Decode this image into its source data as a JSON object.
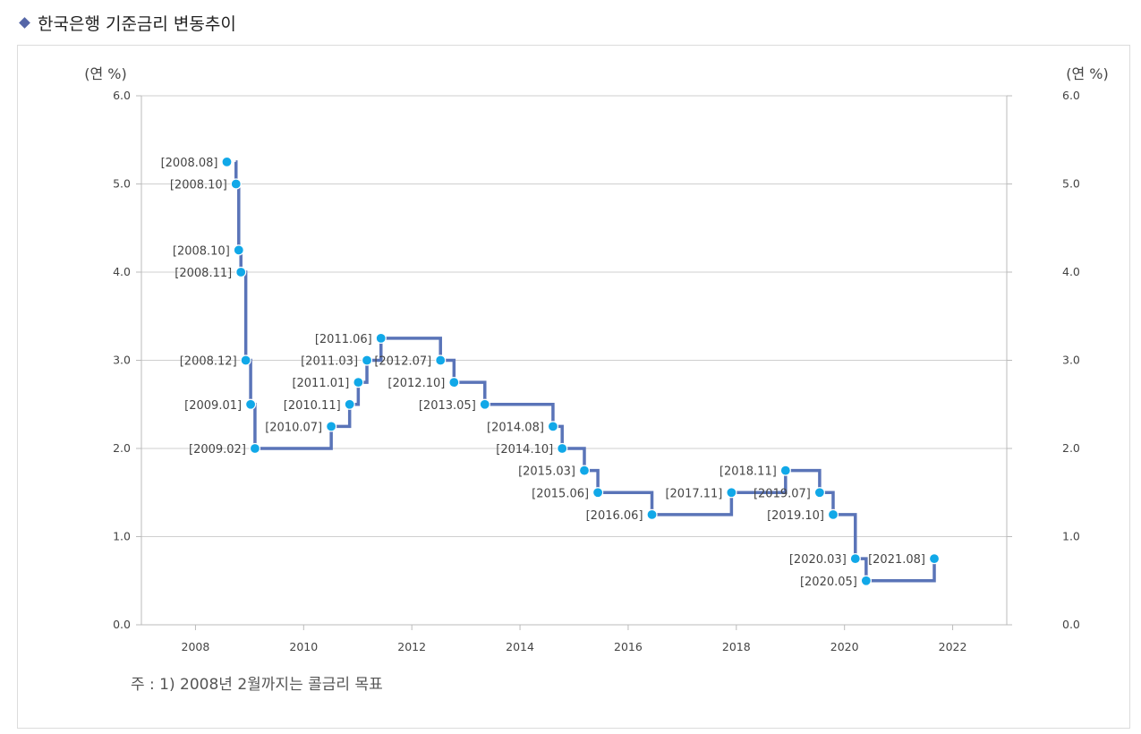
{
  "heading": {
    "title": "한국은행 기준금리 변동추이",
    "marker_color": "#5566a8"
  },
  "note": "주 : 1) 2008년 2월까지는 콜금리 목표",
  "chart_data": {
    "type": "line",
    "title": "",
    "ylabel_left": "(연 %)",
    "ylabel_right": "(연 %)",
    "ylim": [
      0,
      6
    ],
    "yticks": [
      "0.0",
      "1.0",
      "2.0",
      "3.0",
      "4.0",
      "5.0",
      "6.0"
    ],
    "xlim": [
      2007.0,
      2023.0
    ],
    "xticks": [
      "2008",
      "2010",
      "2012",
      "2014",
      "2016",
      "2018",
      "2020",
      "2022"
    ],
    "grid": "horizontal",
    "step": true,
    "line_color": "#5a74b8",
    "marker_color": "#11a8e8",
    "series": [
      {
        "points": [
          {
            "x": 2008.58,
            "y": 5.25,
            "label": "[2008.08]",
            "side": "left"
          },
          {
            "x": 2008.75,
            "y": 5.0,
            "label": "[2008.10]",
            "side": "left"
          },
          {
            "x": 2008.8,
            "y": 4.25,
            "label": "[2008.10]",
            "side": "left"
          },
          {
            "x": 2008.84,
            "y": 4.0,
            "label": "[2008.11]",
            "side": "left"
          },
          {
            "x": 2008.93,
            "y": 3.0,
            "label": "[2008.12]",
            "side": "left"
          },
          {
            "x": 2009.02,
            "y": 2.5,
            "label": "[2009.01]",
            "side": "left"
          },
          {
            "x": 2009.1,
            "y": 2.0,
            "label": "[2009.02]",
            "side": "left"
          },
          {
            "x": 2010.51,
            "y": 2.25,
            "label": "[2010.07]",
            "side": "left"
          },
          {
            "x": 2010.85,
            "y": 2.5,
            "label": "[2010.11]",
            "side": "left"
          },
          {
            "x": 2011.01,
            "y": 2.75,
            "label": "[2011.01]",
            "side": "left"
          },
          {
            "x": 2011.17,
            "y": 3.0,
            "label": "[2011.03]",
            "side": "left"
          },
          {
            "x": 2011.43,
            "y": 3.25,
            "label": "[2011.06]",
            "side": "left"
          },
          {
            "x": 2012.53,
            "y": 3.0,
            "label": "[2012.07]",
            "side": "left"
          },
          {
            "x": 2012.78,
            "y": 2.75,
            "label": "[2012.10]",
            "side": "left"
          },
          {
            "x": 2013.35,
            "y": 2.5,
            "label": "[2013.05]",
            "side": "left"
          },
          {
            "x": 2014.61,
            "y": 2.25,
            "label": "[2014.08]",
            "side": "left"
          },
          {
            "x": 2014.78,
            "y": 2.0,
            "label": "[2014.10]",
            "side": "left"
          },
          {
            "x": 2015.19,
            "y": 1.75,
            "label": "[2015.03]",
            "side": "left"
          },
          {
            "x": 2015.44,
            "y": 1.5,
            "label": "[2015.06]",
            "side": "left"
          },
          {
            "x": 2016.44,
            "y": 1.25,
            "label": "[2016.06]",
            "side": "left"
          },
          {
            "x": 2017.91,
            "y": 1.5,
            "label": "[2017.11]",
            "side": "left"
          },
          {
            "x": 2018.91,
            "y": 1.75,
            "label": "[2018.11]",
            "side": "left"
          },
          {
            "x": 2019.54,
            "y": 1.5,
            "label": "[2019.07]",
            "side": "left"
          },
          {
            "x": 2019.79,
            "y": 1.25,
            "label": "[2019.10]",
            "side": "left"
          },
          {
            "x": 2020.2,
            "y": 0.75,
            "label": "[2020.03]",
            "side": "left"
          },
          {
            "x": 2020.4,
            "y": 0.5,
            "label": "[2020.05]",
            "side": "left"
          },
          {
            "x": 2021.66,
            "y": 0.75,
            "label": "[2021.08]",
            "side": "left"
          }
        ]
      }
    ]
  }
}
